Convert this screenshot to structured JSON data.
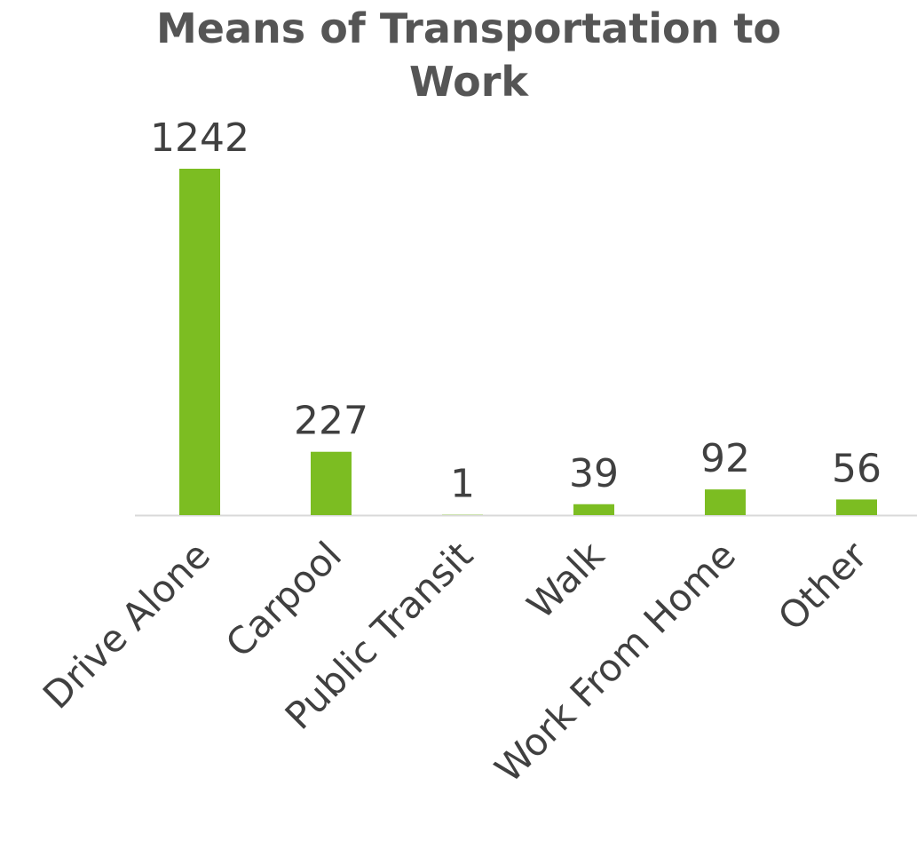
{
  "chart_data": {
    "type": "bar",
    "title": "Means of Transportation to Work",
    "categories": [
      "Drive Alone",
      "Carpool",
      "Public Transit",
      "Walk",
      "Work From Home",
      "Other"
    ],
    "values": [
      1242,
      227,
      1,
      39,
      92,
      56
    ],
    "color": "#7cbd22"
  }
}
